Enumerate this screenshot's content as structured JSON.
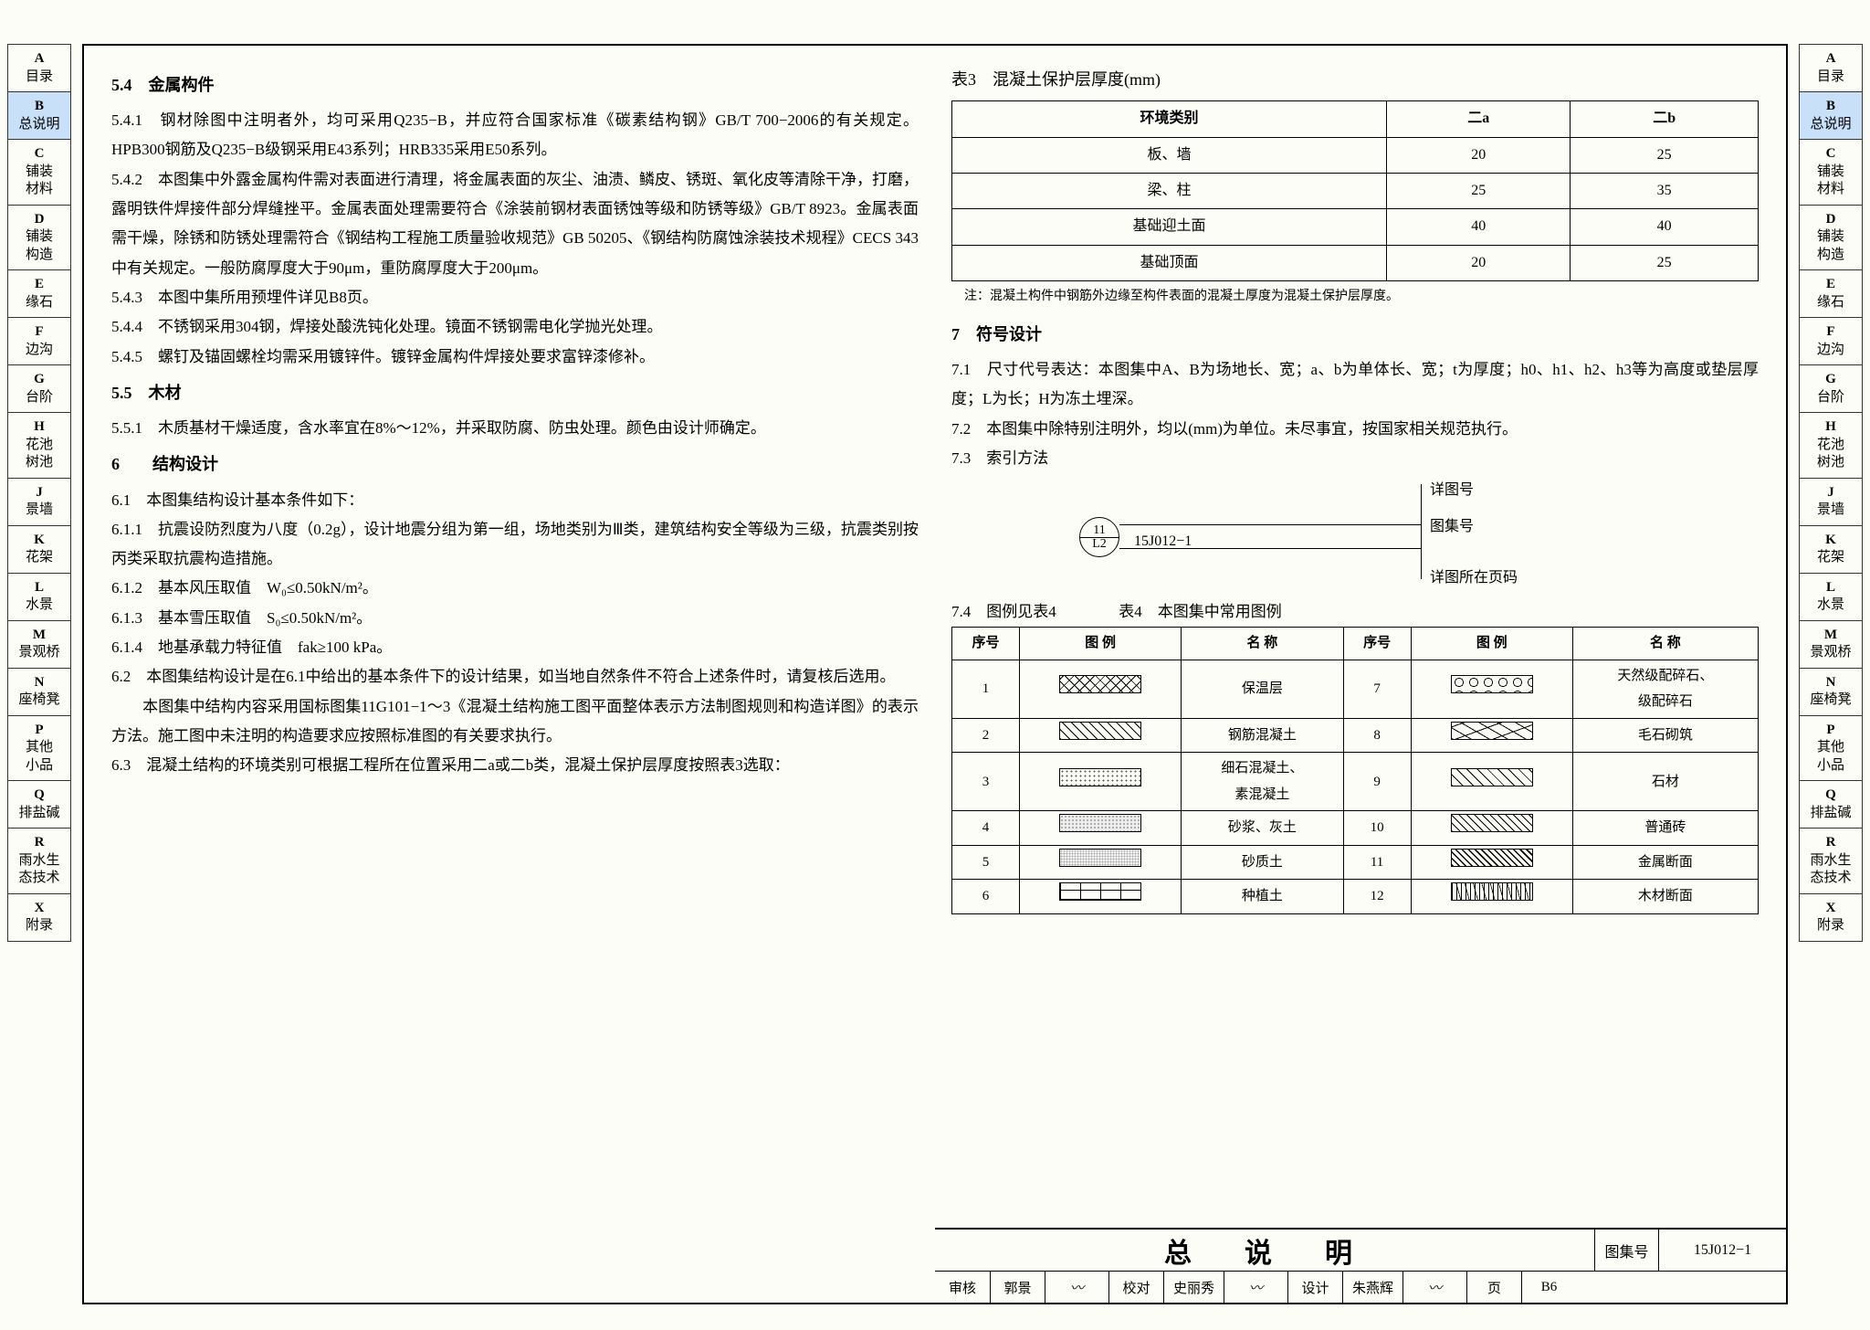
{
  "sidebar": {
    "items": [
      {
        "letter": "A",
        "label": "目录"
      },
      {
        "letter": "B",
        "label": "总说明"
      },
      {
        "letter": "C",
        "label": "铺装\n材料"
      },
      {
        "letter": "D",
        "label": "铺装\n构造"
      },
      {
        "letter": "E",
        "label": "缘石"
      },
      {
        "letter": "F",
        "label": "边沟"
      },
      {
        "letter": "G",
        "label": "台阶"
      },
      {
        "letter": "H",
        "label": "花池\n树池"
      },
      {
        "letter": "J",
        "label": "景墙"
      },
      {
        "letter": "K",
        "label": "花架"
      },
      {
        "letter": "L",
        "label": "水景"
      },
      {
        "letter": "M",
        "label": "景观桥"
      },
      {
        "letter": "N",
        "label": "座椅凳"
      },
      {
        "letter": "P",
        "label": "其他\n小品"
      },
      {
        "letter": "Q",
        "label": "排盐碱"
      },
      {
        "letter": "R",
        "label": "雨水生\n态技术"
      },
      {
        "letter": "X",
        "label": "附录"
      }
    ],
    "active_index": 1
  },
  "left_column": {
    "s54": "5.4　金属构件",
    "p541": "5.4.1　钢材除图中注明者外，均可采用Q235−B，并应符合国家标准《碳素结构钢》GB/T 700−2006的有关规定。HPB300钢筋及Q235−B级钢采用E43系列；HRB335采用E50系列。",
    "p542": "5.4.2　本图集中外露金属构件需对表面进行清理，将金属表面的灰尘、油渍、鳞皮、锈斑、氧化皮等清除干净，打磨，露明铁件焊接件部分焊缝挫平。金属表面处理需要符合《涂装前钢材表面锈蚀等级和防锈等级》GB/T 8923。金属表面需干燥，除锈和防锈处理需符合《钢结构工程施工质量验收规范》GB 50205、《钢结构防腐蚀涂装技术规程》CECS 343中有关规定。一般防腐厚度大于90μm，重防腐厚度大于200μm。",
    "p543": "5.4.3　本图中集所用预埋件详见B8页。",
    "p544": "5.4.4　不锈钢采用304钢，焊接处酸洗钝化处理。镜面不锈钢需电化学抛光处理。",
    "p545": "5.4.5　螺钉及锚固螺栓均需采用镀锌件。镀锌金属构件焊接处要求富锌漆修补。",
    "s55": "5.5　木材",
    "p551": "5.5.1　木质基材干燥适度，含水率宜在8%～12%，并采取防腐、防虫处理。颜色由设计师确定。",
    "s6": "6　　结构设计",
    "p61": "6.1　本图集结构设计基本条件如下：",
    "p611": "6.1.1　抗震设防烈度为八度（0.2g），设计地震分组为第一组，场地类别为Ⅲ类，建筑结构安全等级为三级，抗震类别按丙类采取抗震构造措施。",
    "p612": "6.1.2　基本风压取值　W₀≤0.50kN/m²。",
    "p613": "6.1.3　基本雪压取值　S₀≤0.50kN/m²。",
    "p614": "6.1.4　地基承载力特征值　fak≥100 kPa。",
    "p62": "6.2　本图集结构设计是在6.1中给出的基本条件下的设计结果，如当地自然条件不符合上述条件时，请复核后选用。",
    "p62b": "　　本图集中结构内容采用国标图集11G101−1～3《混凝土结构施工图平面整体表示方法制图规则和构造详图》的表示方法。施工图中未注明的构造要求应按照标准图的有关要求执行。",
    "p63": "6.3　混凝土结构的环境类别可根据工程所在位置采用二a或二b类，混凝土保护层厚度按照表3选取："
  },
  "table3": {
    "title": "表3　混凝土保护层厚度(mm)",
    "header": [
      "环境类别",
      "二a",
      "二b"
    ],
    "rows": [
      [
        "板、墙",
        "20",
        "25"
      ],
      [
        "梁、柱",
        "25",
        "35"
      ],
      [
        "基础迎土面",
        "40",
        "40"
      ],
      [
        "基础顶面",
        "20",
        "25"
      ]
    ],
    "note": "注：混凝土构件中钢筋外边缘至构件表面的混凝土厚度为混凝土保护层厚度。"
  },
  "right_text": {
    "s7": "7　符号设计",
    "p71": "7.1　尺寸代号表达：本图集中A、B为场地长、宽；a、b为单体长、宽；t为厚度；h0、h1、h2、h3等为高度或垫层厚度；L为长；H为冻土埋深。",
    "p72": "7.2　本图集中除特别注明外，均以(mm)为单位。未尽事宜，按国家相关规范执行。",
    "p73": "7.3　索引方法",
    "p74": "7.4　图例见表4"
  },
  "index_labels": {
    "top": "详图号",
    "mid": "图集号",
    "bottom": "详图所在页码",
    "code": "15J012−1",
    "num": "11",
    "page": "L2"
  },
  "table4": {
    "title": "表4　本图集中常用图例",
    "header": [
      "序号",
      "图 例",
      "名 称",
      "序号",
      "",
      "名 称"
    ],
    "rows": [
      [
        "1",
        "cross",
        "保温层",
        "7",
        "pebble",
        "天然级配碎石、\n级配碎石"
      ],
      [
        "2",
        "diag",
        "钢筋混凝土",
        "8",
        "rubble",
        "毛石砌筑"
      ],
      [
        "3",
        "dots",
        "细石混凝土、\n素混凝土",
        "9",
        "stone",
        "石材"
      ],
      [
        "4",
        "sand",
        "砂浆、灰土",
        "10",
        "brick2",
        "普通砖"
      ],
      [
        "5",
        "fine",
        "砂质土",
        "11",
        "metal",
        "金属断面"
      ],
      [
        "6",
        "brick",
        "种植土",
        "12",
        "wood",
        "木材断面"
      ]
    ]
  },
  "title_block": {
    "main": "总　说　明",
    "set_label": "图集号",
    "set_no": "15J012−1",
    "row2": [
      {
        "k": "审核",
        "v": "郭景",
        "sig": "签"
      },
      {
        "k": "校对",
        "v": "史丽秀",
        "sig": "签"
      },
      {
        "k": "设计",
        "v": "朱燕辉",
        "sig": "签"
      },
      {
        "k": "页",
        "v": "B6"
      }
    ]
  }
}
